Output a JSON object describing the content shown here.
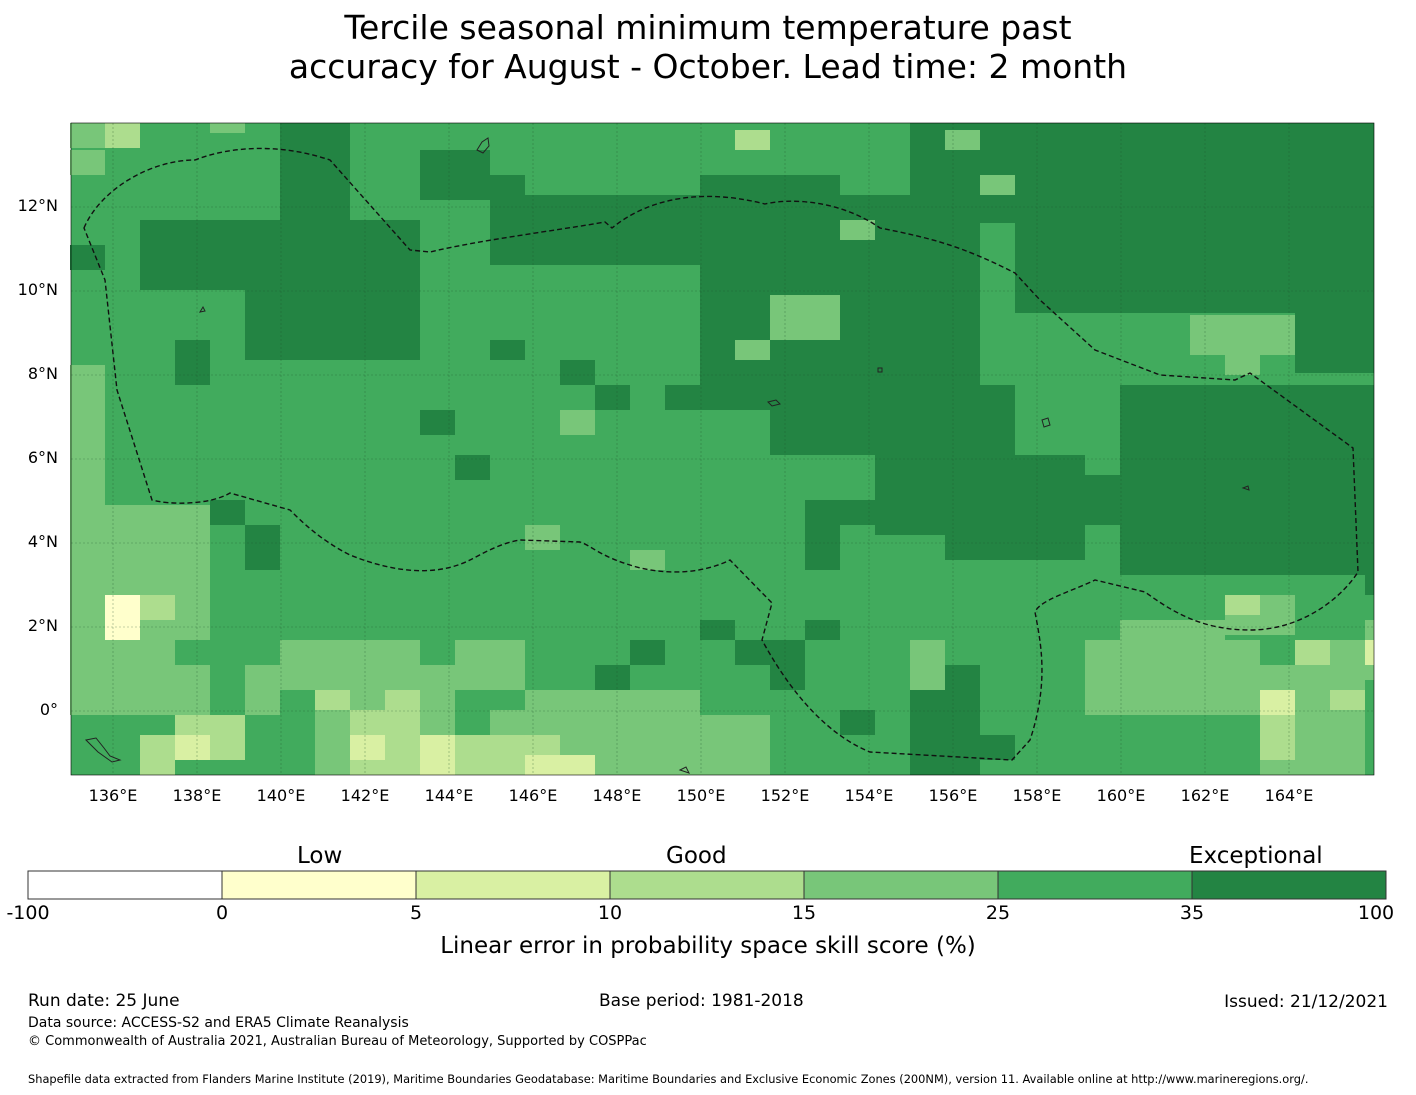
{
  "title": {
    "line1": "Tercile seasonal minimum temperature past",
    "line2": "accuracy for August - October. Lead time: 2 month"
  },
  "map": {
    "lat_labels": [
      "12°N",
      "10°N",
      "8°N",
      "6°N",
      "4°N",
      "2°N",
      "0°"
    ],
    "lon_labels": [
      "136°E",
      "138°E",
      "140°E",
      "142°E",
      "144°E",
      "146°E",
      "148°E",
      "150°E",
      "152°E",
      "154°E",
      "156°E",
      "158°E",
      "160°E",
      "162°E",
      "164°E"
    ],
    "boundary_style": "dashed",
    "palette": {
      "dark": "#238443",
      "mid": "#41ab5d",
      "light": "#78c679",
      "pale": "#addd8e",
      "cream": "#d9f0a3",
      "yellow": "#ffffcc"
    }
  },
  "legend": {
    "categories": [
      "Low",
      "Good",
      "Exceptional"
    ],
    "tick_labels": [
      "-100",
      "0",
      "5",
      "10",
      "15",
      "25",
      "35",
      "100"
    ],
    "colors": [
      "#ffffff",
      "#ffffcc",
      "#d9f0a3",
      "#addd8e",
      "#78c679",
      "#41ab5d",
      "#238443"
    ],
    "title": "Linear error in probability space skill score (%)"
  },
  "footer": {
    "run_date": "Run date: 25 June",
    "base_period": "Base period: 1981-2018",
    "issued": "Issued: 21/12/2021",
    "data_source": "Data source: ACCESS-S2 and ERA5 Climate Reanalysis",
    "copyright": "© Commonwealth of Australia 2021, Australian Bureau of Meteorology, Supported by COSPPac",
    "shapefile": "Shapefile data extracted from Flanders Marine Institute (2019), Maritime Boundaries Geodatabase: Maritime Boundaries and Exclusive Economic Zones (200NM), version 11. Available online at http://www.marineregions.org/."
  }
}
